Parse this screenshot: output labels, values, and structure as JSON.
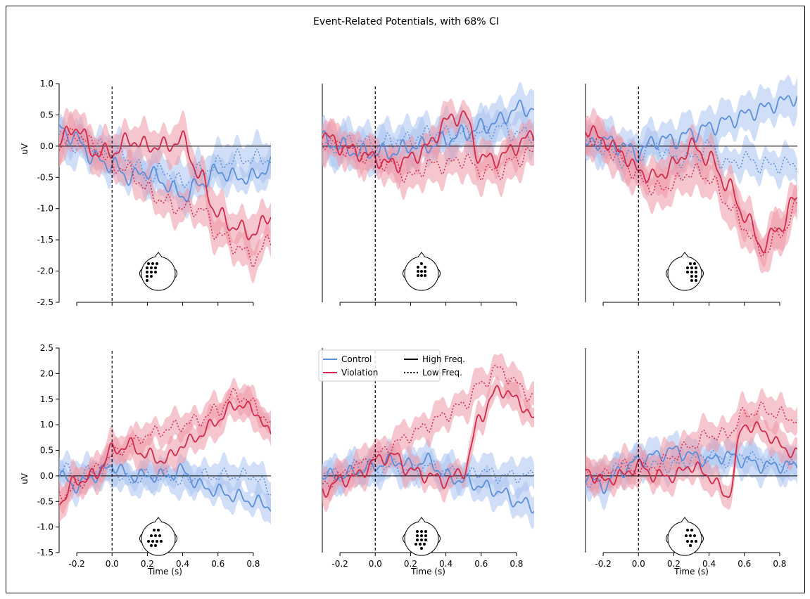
{
  "title": "Event-Related Potentials, with 68% CI",
  "colors": {
    "control": "#5b8fd9",
    "violation": "#d42a4a",
    "control_band": "#a9c3f0",
    "violation_band": "#ee98a6"
  },
  "legend": {
    "control": "Control",
    "violation": "Violation",
    "high": "High Freq.",
    "low": "Low Freq."
  },
  "chart_data": {
    "type": "line",
    "title": "Event-Related Potentials, with 68% CI",
    "ci": "68%",
    "xlim": [
      -0.3,
      0.9
    ],
    "xticks": [
      -0.2,
      0.0,
      0.2,
      0.4,
      0.6,
      0.8
    ],
    "xlabel": "Time (s)",
    "ylabel": "uV",
    "rows": [
      {
        "ylim": [
          -2.5,
          1.0
        ],
        "yticks": [
          -2.5,
          -2.0,
          -1.5,
          -1.0,
          -0.5,
          0.0,
          0.5,
          1.0
        ]
      },
      {
        "ylim": [
          -1.5,
          2.5
        ],
        "yticks": [
          -1.5,
          -1.0,
          -0.5,
          0.0,
          0.5,
          1.0,
          1.5,
          2.0,
          2.5
        ]
      }
    ],
    "x": [
      -0.3,
      -0.2,
      -0.1,
      0.0,
      0.1,
      0.2,
      0.3,
      0.4,
      0.5,
      0.6,
      0.7,
      0.8,
      0.9
    ],
    "panels": [
      {
        "region": "left-frontal",
        "series": [
          {
            "name": "Control",
            "freq": "High Freq.",
            "values": [
              0.3,
              0.1,
              -0.2,
              -0.3,
              -0.5,
              -0.4,
              -0.6,
              -0.8,
              -0.6,
              -0.4,
              -0.5,
              -0.5,
              -0.3
            ]
          },
          {
            "name": "Control",
            "freq": "Low Freq.",
            "values": [
              0.1,
              0.0,
              0.0,
              -0.1,
              -0.2,
              -0.5,
              -0.4,
              -0.6,
              -0.4,
              -0.3,
              -0.2,
              -0.2,
              -0.2
            ]
          },
          {
            "name": "Violation",
            "freq": "High Freq.",
            "values": [
              0.1,
              0.3,
              -0.1,
              -0.1,
              0.1,
              0.0,
              0.0,
              0.1,
              -0.5,
              -1.1,
              -1.3,
              -1.4,
              -1.1
            ]
          },
          {
            "name": "Violation",
            "freq": "Low Freq.",
            "values": [
              0.0,
              0.2,
              0.0,
              -0.3,
              -0.4,
              -0.7,
              -0.9,
              -1.0,
              -1.0,
              -1.4,
              -1.6,
              -1.8,
              -1.5
            ]
          }
        ]
      },
      {
        "region": "midline-frontal",
        "series": [
          {
            "name": "Control",
            "freq": "High Freq.",
            "values": [
              0.1,
              0.0,
              -0.1,
              -0.1,
              -0.1,
              0.0,
              0.0,
              0.1,
              0.2,
              0.3,
              0.4,
              0.6,
              0.6
            ]
          },
          {
            "name": "Control",
            "freq": "Low Freq.",
            "values": [
              0.0,
              0.0,
              0.1,
              0.0,
              0.1,
              0.1,
              0.2,
              0.2,
              0.2,
              0.2,
              0.3,
              0.2,
              0.2
            ]
          },
          {
            "name": "Violation",
            "freq": "High Freq.",
            "values": [
              0.2,
              0.0,
              -0.1,
              -0.2,
              -0.3,
              -0.2,
              0.0,
              0.4,
              0.5,
              -0.2,
              -0.2,
              0.0,
              0.2
            ]
          },
          {
            "name": "Violation",
            "freq": "Low Freq.",
            "values": [
              0.1,
              0.0,
              -0.1,
              -0.2,
              -0.3,
              -0.5,
              -0.3,
              -0.3,
              -0.2,
              -0.4,
              -0.4,
              -0.2,
              -0.1
            ]
          }
        ]
      },
      {
        "region": "right-frontal",
        "series": [
          {
            "name": "Control",
            "freq": "High Freq.",
            "values": [
              0.0,
              0.1,
              0.0,
              -0.1,
              0.1,
              0.1,
              0.2,
              0.3,
              0.4,
              0.5,
              0.6,
              0.7,
              0.8
            ]
          },
          {
            "name": "Control",
            "freq": "Low Freq.",
            "values": [
              0.1,
              0.0,
              -0.2,
              -0.1,
              0.0,
              -0.2,
              -0.2,
              0.0,
              -0.3,
              -0.2,
              -0.3,
              -0.3,
              -0.3
            ]
          },
          {
            "name": "Violation",
            "freq": "High Freq.",
            "values": [
              0.3,
              0.1,
              -0.1,
              -0.4,
              -0.5,
              -0.3,
              0.0,
              -0.2,
              -0.6,
              -1.1,
              -1.6,
              -1.3,
              -0.8
            ]
          },
          {
            "name": "Violation",
            "freq": "Low Freq.",
            "values": [
              0.2,
              0.0,
              -0.2,
              -0.5,
              -0.7,
              -0.6,
              -0.4,
              -0.5,
              -0.9,
              -1.3,
              -1.7,
              -1.4,
              -1.0
            ]
          }
        ]
      },
      {
        "region": "left-posterior",
        "series": [
          {
            "name": "Control",
            "freq": "High Freq.",
            "values": [
              0.0,
              -0.2,
              0.0,
              0.2,
              0.0,
              0.0,
              0.0,
              0.1,
              -0.2,
              -0.3,
              -0.4,
              -0.5,
              -0.6
            ]
          },
          {
            "name": "Control",
            "freq": "Low Freq.",
            "values": [
              0.2,
              0.0,
              0.1,
              0.1,
              -0.1,
              0.0,
              0.0,
              -0.1,
              0.0,
              0.0,
              0.0,
              0.0,
              -0.3
            ]
          },
          {
            "name": "Violation",
            "freq": "High Freq.",
            "values": [
              -0.5,
              -0.1,
              0.0,
              0.5,
              0.6,
              0.4,
              0.3,
              0.6,
              0.8,
              1.1,
              1.4,
              1.3,
              0.8
            ]
          },
          {
            "name": "Violation",
            "freq": "Low Freq.",
            "values": [
              -0.4,
              -0.2,
              0.1,
              0.4,
              0.6,
              0.8,
              0.9,
              1.0,
              1.1,
              1.3,
              1.6,
              1.4,
              1.0
            ]
          }
        ]
      },
      {
        "region": "midline-posterior",
        "series": [
          {
            "name": "Control",
            "freq": "High Freq.",
            "values": [
              0.0,
              0.0,
              0.1,
              0.2,
              0.3,
              0.2,
              0.3,
              0.0,
              -0.1,
              -0.2,
              -0.3,
              -0.5,
              -0.6
            ]
          },
          {
            "name": "Control",
            "freq": "Low Freq.",
            "values": [
              0.1,
              0.0,
              0.2,
              0.1,
              0.2,
              0.1,
              0.2,
              0.1,
              0.0,
              0.1,
              0.0,
              0.0,
              0.0
            ]
          },
          {
            "name": "Violation",
            "freq": "High Freq.",
            "values": [
              -0.3,
              -0.1,
              0.0,
              0.3,
              0.4,
              0.1,
              0.0,
              -0.1,
              0.1,
              1.2,
              1.7,
              1.5,
              1.1
            ]
          },
          {
            "name": "Violation",
            "freq": "Low Freq.",
            "values": [
              -0.2,
              0.0,
              0.2,
              0.4,
              0.6,
              0.8,
              1.0,
              1.2,
              1.4,
              1.8,
              2.1,
              1.8,
              1.5
            ]
          }
        ]
      },
      {
        "region": "right-posterior",
        "series": [
          {
            "name": "Control",
            "freq": "High Freq.",
            "values": [
              0.0,
              -0.2,
              0.1,
              0.3,
              0.4,
              0.5,
              0.4,
              0.3,
              0.4,
              0.3,
              0.2,
              0.2,
              0.2
            ]
          },
          {
            "name": "Control",
            "freq": "Low Freq.",
            "values": [
              -0.1,
              0.0,
              0.2,
              0.3,
              0.2,
              0.2,
              0.3,
              0.4,
              0.3,
              0.4,
              0.3,
              0.2,
              0.2
            ]
          },
          {
            "name": "Violation",
            "freq": "High Freq.",
            "values": [
              0.1,
              -0.1,
              0.0,
              0.2,
              0.0,
              0.0,
              0.2,
              0.0,
              -0.4,
              1.0,
              0.9,
              0.6,
              0.4
            ]
          },
          {
            "name": "Violation",
            "freq": "Low Freq.",
            "values": [
              0.0,
              0.0,
              0.2,
              0.1,
              0.2,
              0.4,
              0.6,
              0.8,
              0.8,
              1.2,
              1.3,
              1.2,
              1.1
            ]
          }
        ]
      }
    ]
  }
}
